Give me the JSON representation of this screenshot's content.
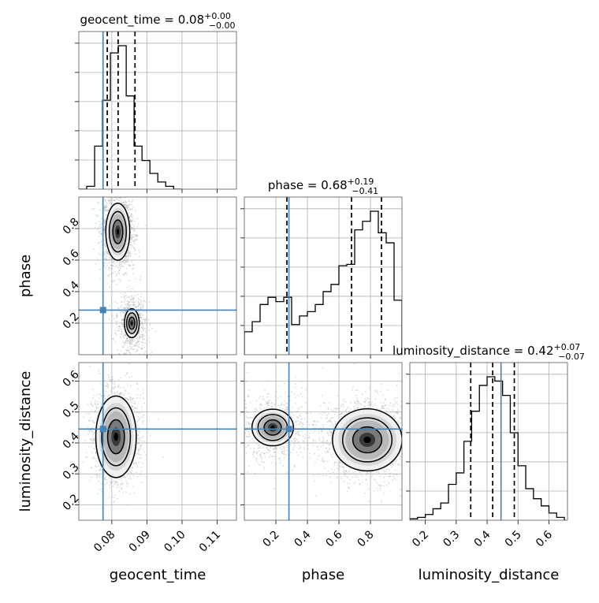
{
  "chart_data": {
    "type": "corner",
    "parameters": [
      "geocent_time",
      "phase",
      "luminosity_distance"
    ],
    "axis_labels": [
      "geocent_time",
      "phase",
      "luminosity_distance"
    ],
    "titles": {
      "geocent_time": {
        "name": "geocent_time",
        "median": "0.08",
        "plus": "+0.00",
        "minus": "−0.00"
      },
      "phase": {
        "name": "phase",
        "median": "0.68",
        "plus": "+0.19",
        "minus": "−0.41"
      },
      "luminosity_distance": {
        "name": "luminosity_distance",
        "median": "0.42",
        "plus": "+0.07",
        "minus": "−0.07"
      }
    },
    "ranges": {
      "geocent_time": [
        0.0706,
        0.1155
      ],
      "phase": [
        0.0,
        1.0
      ],
      "luminosity_distance": [
        0.15,
        0.66
      ]
    },
    "ticks": {
      "geocent_time": [
        "0.08",
        "0.09",
        "0.10",
        "0.11"
      ],
      "phase": [
        "0.2",
        "0.4",
        "0.6",
        "0.8"
      ],
      "luminosity_distance": [
        "0.2",
        "0.3",
        "0.4",
        "0.5",
        "0.6"
      ]
    },
    "truths": {
      "geocent_time": 0.0775,
      "phase": 0.283,
      "luminosity_distance": 0.445
    },
    "quantiles": {
      "geocent_time": [
        0.0787,
        0.0818,
        0.0866
      ],
      "phase": [
        0.27,
        0.68,
        0.87
      ],
      "luminosity_distance": [
        0.347,
        0.418,
        0.488
      ]
    },
    "histograms": {
      "geocent_time": {
        "edges": [
          0.0706,
          0.07285,
          0.0751,
          0.07735,
          0.0796,
          0.08185,
          0.0841,
          0.08635,
          0.0886,
          0.09085,
          0.0931,
          0.09535,
          0.0976,
          0.09985
        ],
        "counts": [
          0.0,
          0.02,
          0.3,
          0.62,
          0.95,
          1.0,
          0.65,
          0.3,
          0.2,
          0.11,
          0.05,
          0.02,
          0.0
        ]
      },
      "phase": {
        "edges": [
          0.0,
          0.05,
          0.1,
          0.15,
          0.2,
          0.25,
          0.3,
          0.35,
          0.4,
          0.45,
          0.5,
          0.55,
          0.6,
          0.65,
          0.7,
          0.75,
          0.8,
          0.85,
          0.9,
          0.95,
          1.0
        ],
        "counts": [
          0.16,
          0.23,
          0.35,
          0.4,
          0.37,
          0.4,
          0.21,
          0.27,
          0.3,
          0.35,
          0.44,
          0.49,
          0.62,
          0.63,
          0.87,
          0.93,
          1.0,
          0.85,
          0.78,
          0.38
        ]
      },
      "luminosity_distance": {
        "edges": [
          0.1,
          0.125,
          0.15,
          0.175,
          0.2,
          0.225,
          0.25,
          0.275,
          0.3,
          0.325,
          0.35,
          0.375,
          0.4,
          0.425,
          0.45,
          0.475,
          0.5,
          0.525,
          0.55,
          0.575,
          0.6,
          0.625,
          0.65
        ],
        "counts": [
          0.0,
          0.0,
          0.01,
          0.02,
          0.04,
          0.08,
          0.12,
          0.25,
          0.33,
          0.55,
          0.76,
          0.94,
          1.0,
          0.97,
          0.87,
          0.61,
          0.38,
          0.22,
          0.15,
          0.1,
          0.05,
          0.02
        ]
      }
    },
    "panels_2d": [
      {
        "x": "geocent_time",
        "y": "phase",
        "modes": [
          {
            "cx": 0.0817,
            "cy": 0.78,
            "sx": 0.0017,
            "sy": 0.09,
            "weight": 0.7
          },
          {
            "cx": 0.0857,
            "cy": 0.2,
            "sx": 0.0016,
            "sy": 0.07,
            "weight": 0.3
          }
        ]
      },
      {
        "x": "geocent_time",
        "y": "luminosity_distance",
        "modes": [
          {
            "cx": 0.0812,
            "cy": 0.42,
            "sx": 0.0024,
            "sy": 0.055,
            "weight": 1.0
          }
        ]
      },
      {
        "x": "phase",
        "y": "luminosity_distance",
        "modes": [
          {
            "cx": 0.78,
            "cy": 0.41,
            "sx": 0.11,
            "sy": 0.05,
            "weight": 0.7
          },
          {
            "cx": 0.18,
            "cy": 0.45,
            "sx": 0.1,
            "sy": 0.045,
            "weight": 0.3
          }
        ]
      }
    ],
    "grid": true,
    "colors": {
      "truth": "#4682b4",
      "samples": "#9a9a9a",
      "contour": "#000000"
    }
  }
}
